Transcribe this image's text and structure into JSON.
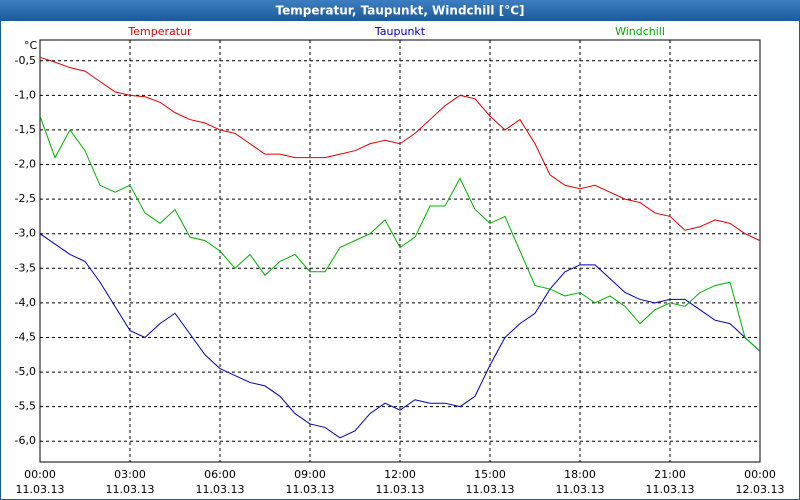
{
  "chart_data": {
    "type": "line",
    "title": "Temperatur, Taupunkt, Windchill [°C]",
    "y_label": "°C",
    "x": [
      0,
      0.5,
      1,
      1.5,
      2,
      2.5,
      3,
      3.5,
      4,
      4.5,
      5,
      5.5,
      6,
      6.5,
      7,
      7.5,
      8,
      8.5,
      9,
      9.5,
      10,
      10.5,
      11,
      11.5,
      12,
      12.5,
      13,
      13.5,
      14,
      14.5,
      15,
      15.5,
      16,
      16.5,
      17,
      17.5,
      18,
      18.5,
      19,
      19.5,
      20,
      20.5,
      21,
      21.5,
      22,
      22.5,
      23,
      23.5,
      24
    ],
    "series": [
      {
        "name": "Temperatur",
        "color": "#e00000",
        "values": [
          -0.45,
          -0.52,
          -0.6,
          -0.65,
          -0.8,
          -0.95,
          -1.0,
          -1.02,
          -1.1,
          -1.25,
          -1.35,
          -1.4,
          -1.5,
          -1.55,
          -1.7,
          -1.85,
          -1.85,
          -1.9,
          -1.9,
          -1.9,
          -1.85,
          -1.8,
          -1.7,
          -1.65,
          -1.7,
          -1.55,
          -1.35,
          -1.15,
          -1.0,
          -1.05,
          -1.3,
          -1.5,
          -1.35,
          -1.7,
          -2.15,
          -2.3,
          -2.35,
          -2.3,
          -2.4,
          -2.5,
          -2.55,
          -2.7,
          -2.75,
          -2.95,
          -2.9,
          -2.8,
          -2.85,
          -3.0,
          -3.1
        ]
      },
      {
        "name": "Taupunkt",
        "color": "#0000b0",
        "values": [
          -3.0,
          -3.15,
          -3.3,
          -3.4,
          -3.7,
          -4.05,
          -4.4,
          -4.5,
          -4.3,
          -4.15,
          -4.45,
          -4.75,
          -4.95,
          -5.05,
          -5.15,
          -5.2,
          -5.35,
          -5.6,
          -5.75,
          -5.8,
          -5.95,
          -5.85,
          -5.6,
          -5.45,
          -5.55,
          -5.4,
          -5.45,
          -5.45,
          -5.5,
          -5.35,
          -4.9,
          -4.5,
          -4.3,
          -4.15,
          -3.8,
          -3.55,
          -3.45,
          -3.45,
          -3.65,
          -3.85,
          -3.95,
          -4.0,
          -3.95,
          -3.95,
          -4.1,
          -4.25,
          -4.3,
          -4.5,
          -4.7
        ]
      },
      {
        "name": "Windchill",
        "color": "#00b000",
        "values": [
          -1.3,
          -1.9,
          -1.5,
          -1.8,
          -2.3,
          -2.4,
          -2.3,
          -2.7,
          -2.85,
          -2.65,
          -3.05,
          -3.1,
          -3.25,
          -3.5,
          -3.3,
          -3.6,
          -3.4,
          -3.3,
          -3.55,
          -3.55,
          -3.2,
          -3.1,
          -3.0,
          -2.8,
          -3.2,
          -3.05,
          -2.6,
          -2.6,
          -2.2,
          -2.65,
          -2.85,
          -2.75,
          -3.25,
          -3.75,
          -3.8,
          -3.9,
          -3.85,
          -4.0,
          -3.9,
          -4.05,
          -4.3,
          -4.1,
          -4.0,
          -4.05,
          -3.85,
          -3.75,
          -3.7,
          -4.5,
          -4.7
        ]
      }
    ],
    "xlim": [
      0,
      24
    ],
    "xticks": [
      {
        "value": 0,
        "label": "00:00",
        "date": "11.03.13"
      },
      {
        "value": 3,
        "label": "03:00",
        "date": "11.03.13"
      },
      {
        "value": 6,
        "label": "06:00",
        "date": "11.03.13"
      },
      {
        "value": 9,
        "label": "09:00",
        "date": "11.03.13"
      },
      {
        "value": 12,
        "label": "12:00",
        "date": "11.03.13"
      },
      {
        "value": 15,
        "label": "15:00",
        "date": "11.03.13"
      },
      {
        "value": 18,
        "label": "18:00",
        "date": "11.03.13"
      },
      {
        "value": 21,
        "label": "21:00",
        "date": "11.03.13"
      },
      {
        "value": 24,
        "label": "00:00",
        "date": "12.03.13"
      }
    ],
    "ylim": [
      -6.3,
      -0.2
    ],
    "yticks": [
      {
        "value": -0.5,
        "label": "-0,5"
      },
      {
        "value": -1.0,
        "label": "-1,0"
      },
      {
        "value": -1.5,
        "label": "-1,5"
      },
      {
        "value": -2.0,
        "label": "-2,0"
      },
      {
        "value": -2.5,
        "label": "-2,5"
      },
      {
        "value": -3.0,
        "label": "-3,0"
      },
      {
        "value": -3.5,
        "label": "-3,5"
      },
      {
        "value": -4.0,
        "label": "-4,0"
      },
      {
        "value": -4.5,
        "label": "-4,5"
      },
      {
        "value": -5.0,
        "label": "-5,0"
      },
      {
        "value": -5.5,
        "label": "-5,5"
      },
      {
        "value": -6.0,
        "label": "-6,0"
      }
    ],
    "grid": true
  }
}
